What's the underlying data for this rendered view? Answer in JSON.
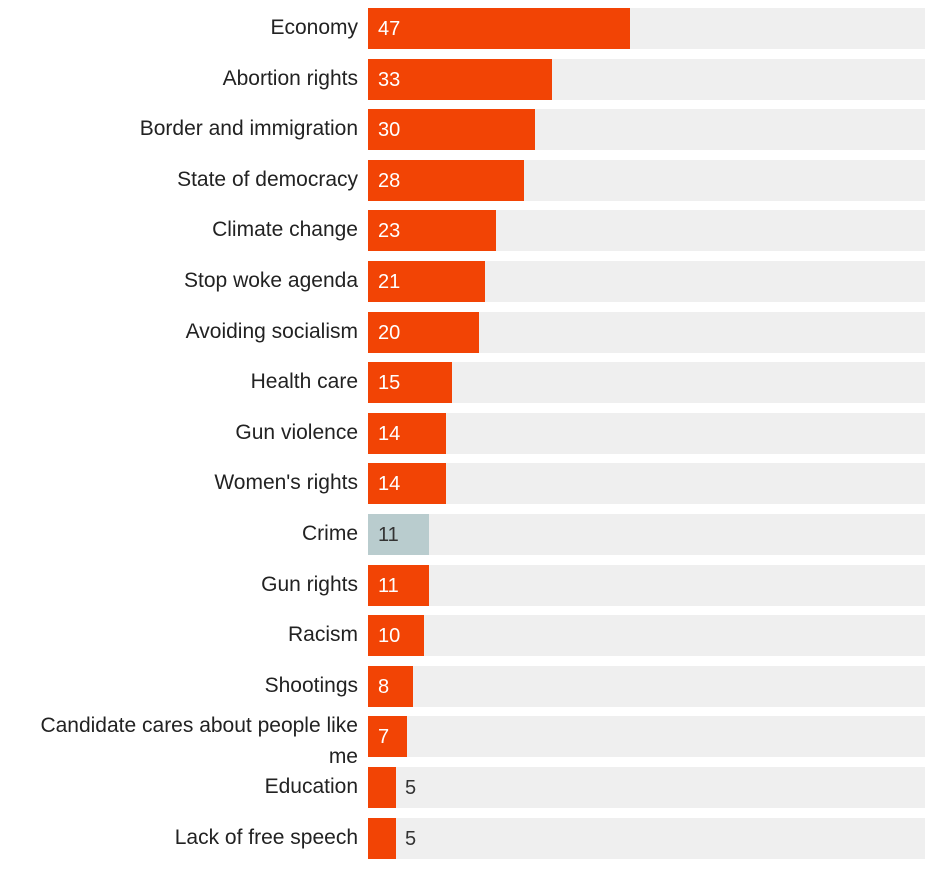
{
  "chart_data": {
    "type": "bar",
    "orientation": "horizontal",
    "xlim": [
      0,
      100
    ],
    "categories": [
      "Economy",
      "Abortion rights",
      "Border and immigration",
      "State of democracy",
      "Climate change",
      "Stop woke agenda",
      "Avoiding socialism",
      "Health care",
      "Gun violence",
      "Women's rights",
      "Crime",
      "Gun rights",
      "Racism",
      "Shootings",
      "Candidate cares about people like me",
      "Education",
      "Lack of free speech"
    ],
    "values": [
      47,
      33,
      30,
      28,
      23,
      21,
      20,
      15,
      14,
      14,
      11,
      11,
      10,
      8,
      7,
      5,
      5
    ],
    "bar_colors": [
      "#f24405",
      "#f24405",
      "#f24405",
      "#f24405",
      "#f24405",
      "#f24405",
      "#f24405",
      "#f24405",
      "#f24405",
      "#f24405",
      "#b9ccce",
      "#f24405",
      "#f24405",
      "#f24405",
      "#f24405",
      "#f24405",
      "#f24405"
    ],
    "track_color": "#efefef",
    "grid": false,
    "legend": "none"
  }
}
